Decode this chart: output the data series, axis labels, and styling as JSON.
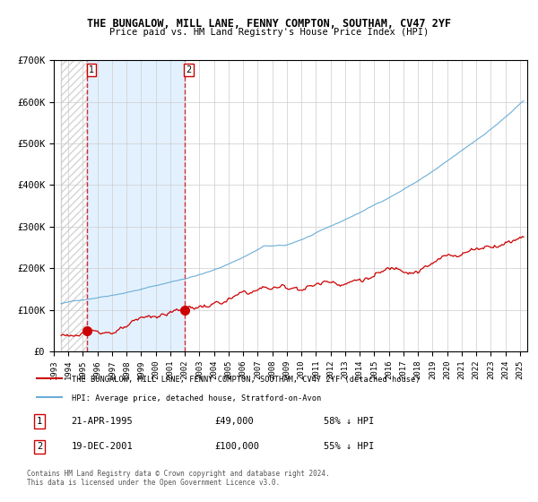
{
  "title": "THE BUNGALOW, MILL LANE, FENNY COMPTON, SOUTHAM, CV47 2YF",
  "subtitle": "Price paid vs. HM Land Registry's House Price Index (HPI)",
  "purchase1_date": "1995-04-21",
  "purchase1_price": 49000,
  "purchase1_label": "1",
  "purchase1_pct": "58% ↓ HPI",
  "purchase2_date": "2001-12-19",
  "purchase2_price": 100000,
  "purchase2_label": "2",
  "purchase2_pct": "55% ↓ HPI",
  "legend_line1": "THE BUNGALOW, MILL LANE, FENNY COMPTON, SOUTHAM, CV47 2YF (detached house)",
  "legend_line2": "HPI: Average price, detached house, Stratford-on-Avon",
  "table_row1": "1    21-APR-1995         £49,000        58% ↓ HPI",
  "table_row2": "2    19-DEC-2001         £100,000      55% ↓ HPI",
  "footnote": "Contains HM Land Registry data © Crown copyright and database right 2024.\nThis data is licensed under the Open Government Licence v3.0.",
  "hpi_color": "#6baed6",
  "price_color": "#cc0000",
  "dashed_line_color": "#cc0000",
  "shaded_region_color": "#ddeeff",
  "hatched_region_color": "#cccccc",
  "grid_color": "#cccccc",
  "ylim": [
    0,
    700000
  ],
  "xlim_start": 1993.5,
  "xlim_end": 2025.5,
  "yticks": [
    0,
    100000,
    200000,
    300000,
    400000,
    500000,
    600000,
    700000
  ],
  "ytick_labels": [
    "£0",
    "£100K",
    "£200K",
    "£300K",
    "£400K",
    "£500K",
    "£600K",
    "£700K"
  ],
  "xticks": [
    1993,
    1994,
    1995,
    1996,
    1997,
    1998,
    1999,
    2000,
    2001,
    2002,
    2003,
    2004,
    2005,
    2006,
    2007,
    2008,
    2009,
    2010,
    2011,
    2012,
    2013,
    2014,
    2015,
    2016,
    2017,
    2018,
    2019,
    2020,
    2021,
    2022,
    2023,
    2024,
    2025
  ]
}
